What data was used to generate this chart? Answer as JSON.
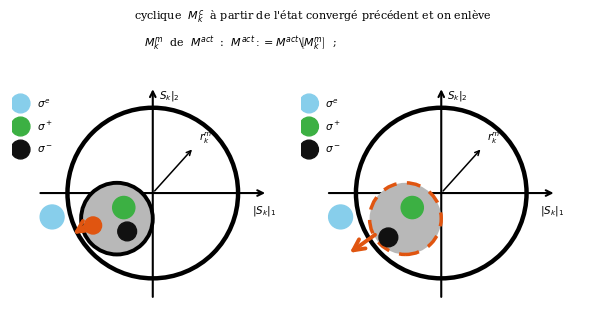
{
  "fig_width": 6.01,
  "fig_height": 3.3,
  "dpi": 100,
  "bg_color": "#ffffff",
  "legend_sigma_e_color": "#87ceeb",
  "legend_sigma_plus_color": "#3cb043",
  "legend_sigma_minus_color": "#111111",
  "orange_color": "#e05510",
  "blue_light": "#87ceeb",
  "green_dot": "#3cb043",
  "black_dot": "#111111"
}
